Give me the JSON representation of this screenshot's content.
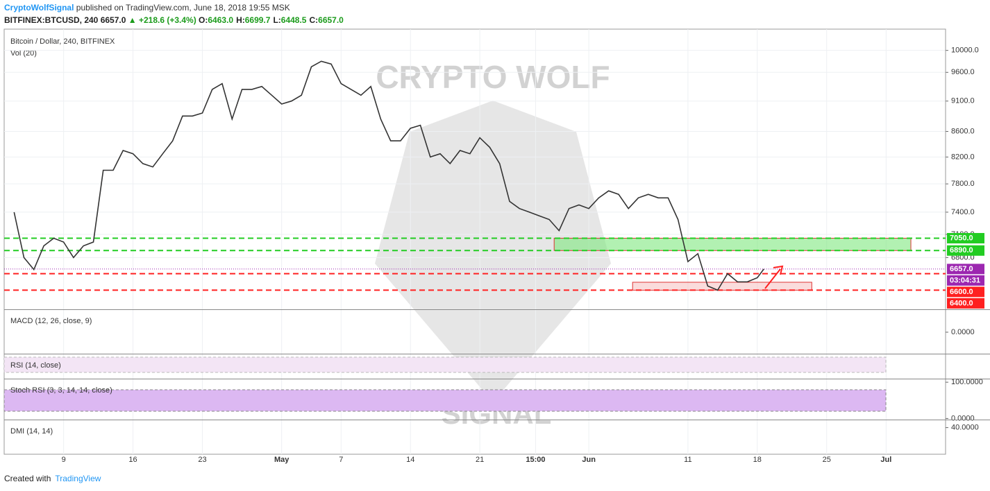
{
  "header": {
    "author": "CryptoWolfSignal",
    "published": "published on TradingView.com, June 18, 2018 19:55 MSK",
    "symbol": "BITFINEX:BTCUSD, 240",
    "last": "6657.0",
    "change": "▲ +218.6 (+3.4%)",
    "ohlc": [
      {
        "label": "O:",
        "value": "6463.0"
      },
      {
        "label": "H:",
        "value": "6699.7"
      },
      {
        "label": "L:",
        "value": "6448.5"
      },
      {
        "label": "C:",
        "value": "6657.0"
      }
    ]
  },
  "watermark": [
    "CRYPTO WOLF",
    "SIGNAL"
  ],
  "chart_data": {
    "type": "line",
    "title": "Bitcoin / Dollar, 240, BITFINEX",
    "subtitle": "Vol (20)",
    "log_scale": true,
    "grid": true,
    "color": "#333333",
    "xlim": [
      "2018-04-03",
      "2018-07-07"
    ],
    "xticks": [
      {
        "value": "2018-04-09",
        "label": "9"
      },
      {
        "value": "2018-04-16",
        "label": "16"
      },
      {
        "value": "2018-04-23",
        "label": "23"
      },
      {
        "value": "2018-05-01",
        "label": "May"
      },
      {
        "value": "2018-05-07",
        "label": "7"
      },
      {
        "value": "2018-05-14",
        "label": "14"
      },
      {
        "value": "2018-05-21",
        "label": "21"
      },
      {
        "value": "2018-05-26T15:00",
        "label": "15:00"
      },
      {
        "value": "2018-06-01",
        "label": "Jun"
      },
      {
        "value": "2018-06-11",
        "label": "11"
      },
      {
        "value": "2018-06-18",
        "label": "18"
      },
      {
        "value": "2018-06-25",
        "label": "25"
      },
      {
        "value": "2018-07-01",
        "label": "Jul"
      }
    ],
    "ylim": [
      6184,
      10404
    ],
    "yticks": [
      {
        "value": 10000,
        "label": "10000.0"
      },
      {
        "value": 9600,
        "label": "9600.0"
      },
      {
        "value": 9100,
        "label": "9100.0"
      },
      {
        "value": 8600,
        "label": "8600.0"
      },
      {
        "value": 8200,
        "label": "8200.0"
      },
      {
        "value": 7800,
        "label": "7800.0"
      },
      {
        "value": 7400,
        "label": "7400.0"
      },
      {
        "value": 7100,
        "label": "7100.0"
      },
      {
        "value": 6800,
        "label": "6800.0"
      }
    ],
    "x": [
      "2018-04-04",
      "2018-04-05",
      "2018-04-06",
      "2018-04-07",
      "2018-04-08",
      "2018-04-09",
      "2018-04-10",
      "2018-04-11",
      "2018-04-12",
      "2018-04-13",
      "2018-04-14",
      "2018-04-15",
      "2018-04-16",
      "2018-04-17",
      "2018-04-18",
      "2018-04-19",
      "2018-04-20",
      "2018-04-21",
      "2018-04-22",
      "2018-04-23",
      "2018-04-24",
      "2018-04-25",
      "2018-04-26",
      "2018-04-27",
      "2018-04-28",
      "2018-04-29",
      "2018-04-30",
      "2018-05-01",
      "2018-05-02",
      "2018-05-03",
      "2018-05-04",
      "2018-05-05",
      "2018-05-06",
      "2018-05-07",
      "2018-05-08",
      "2018-05-09",
      "2018-05-10",
      "2018-05-11",
      "2018-05-12",
      "2018-05-13",
      "2018-05-14",
      "2018-05-15",
      "2018-05-16",
      "2018-05-17",
      "2018-05-18",
      "2018-05-19",
      "2018-05-20",
      "2018-05-21",
      "2018-05-22",
      "2018-05-23",
      "2018-05-24",
      "2018-05-25",
      "2018-05-26",
      "2018-05-27",
      "2018-05-28",
      "2018-05-29",
      "2018-05-30",
      "2018-05-31",
      "2018-06-01",
      "2018-06-02",
      "2018-06-03",
      "2018-06-04",
      "2018-06-05",
      "2018-06-06",
      "2018-06-07",
      "2018-06-08",
      "2018-06-09",
      "2018-06-10",
      "2018-06-11",
      "2018-06-12",
      "2018-06-13",
      "2018-06-14",
      "2018-06-15",
      "2018-06-16",
      "2018-06-17",
      "2018-06-18",
      "2018-06-18T16:00"
    ],
    "values": [
      7400,
      6800,
      6650,
      6950,
      7050,
      7000,
      6800,
      6950,
      7000,
      8000,
      8000,
      8300,
      8250,
      8100,
      8050,
      8250,
      8450,
      8850,
      8850,
      8900,
      9300,
      9400,
      8800,
      9300,
      9300,
      9350,
      9200,
      9050,
      9100,
      9200,
      9700,
      9800,
      9750,
      9400,
      9300,
      9200,
      9350,
      8800,
      8450,
      8450,
      8650,
      8700,
      8200,
      8250,
      8100,
      8300,
      8250,
      8500,
      8350,
      8100,
      7550,
      7450,
      7400,
      7350,
      7300,
      7150,
      7450,
      7500,
      7450,
      7600,
      7700,
      7650,
      7450,
      7600,
      7650,
      7600,
      7600,
      7300,
      6750,
      6850,
      6450,
      6400,
      6600,
      6500,
      6500,
      6550,
      6657
    ],
    "levels": [
      {
        "value": 7050,
        "label": "7050.0",
        "color": "#22cc22",
        "style": "dashed"
      },
      {
        "value": 6890,
        "label": "6890.0",
        "color": "#22cc22",
        "style": "dashed"
      },
      {
        "value": 6657,
        "label": "6657.0",
        "color": "#9c27b0",
        "style": "dotted"
      },
      {
        "value": 6600,
        "label": "6600.0",
        "color": "#ff2020",
        "style": "dashed"
      },
      {
        "value": 6400,
        "label": "6400.0",
        "color": "#ff2020",
        "style": "dashed"
      }
    ],
    "countdown": "03:04:31",
    "zones": [
      {
        "x": [
          "2018-05-28T12:00",
          "2018-07-03T12:00"
        ],
        "y": [
          6890,
          7050
        ],
        "color": "#7ee87e"
      },
      {
        "x": [
          "2018-06-05T10:00",
          "2018-06-23T12:00"
        ],
        "y": [
          6400,
          6495
        ],
        "color": "#f7c4c4"
      }
    ],
    "indicators": [
      {
        "title": "MACD (12, 26, close, 9)",
        "ylim": [
          -300,
          300
        ],
        "yticks": [
          {
            "value": 0,
            "label": "0.0000"
          }
        ]
      },
      {
        "title": "RSI (14, close)",
        "ylim": [
          0,
          100
        ],
        "yticks": []
      },
      {
        "title": "Stoch RSI (3, 3, 14, 14, close)",
        "ylim": [
          -3,
          106
        ],
        "yticks": [
          {
            "value": 100,
            "label": "100.0000"
          },
          {
            "value": 0,
            "label": "0.0000"
          }
        ]
      },
      {
        "title": "DMI (14, 14)",
        "ylim": [
          0,
          50
        ],
        "yticks": [
          {
            "value": 40,
            "label": "40.0000"
          }
        ]
      }
    ]
  },
  "footer": {
    "created": "Created with",
    "brand": "TradingView"
  }
}
